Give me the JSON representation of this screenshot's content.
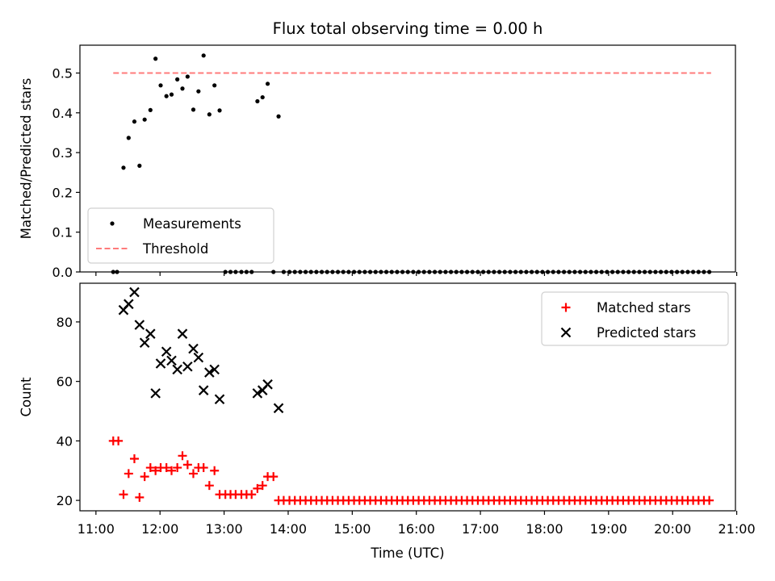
{
  "chart_data": [
    {
      "type": "scatter",
      "title": "Flux total observing time = 0.00 h",
      "xlabel": "",
      "ylabel": "Matched/Predicted stars",
      "xlim": [
        10.75,
        20.98
      ],
      "ylim": [
        0,
        0.57
      ],
      "yticks": [
        0,
        0.1,
        0.2,
        0.3,
        0.4,
        0.5
      ],
      "ytick_labels": [
        "0.0",
        "0.1",
        "0.2",
        "0.3",
        "0.4",
        "0.5"
      ],
      "xticks": [
        11,
        12,
        13,
        14,
        15,
        16,
        17,
        18,
        19,
        20,
        21
      ],
      "legend": {
        "placement": "lower-left",
        "entries": [
          "Measurements",
          "Threshold"
        ]
      },
      "series": [
        {
          "name": "Measurements",
          "marker": "dot",
          "color": "#000000",
          "x": [
            11.27,
            11.33,
            11.43,
            11.51,
            11.6,
            11.68,
            11.76,
            11.85,
            11.93,
            12.01,
            12.1,
            12.18,
            12.27,
            12.35,
            12.43,
            12.52,
            12.6,
            12.68,
            12.77,
            12.85,
            12.93,
            13.02,
            13.1,
            13.18,
            13.27,
            13.35,
            13.43,
            13.52,
            13.6,
            13.68,
            13.77,
            13.85,
            13.93
          ],
          "y": [
            0.0,
            0.0,
            0.262,
            0.337,
            0.378,
            0.267,
            0.383,
            0.407,
            0.536,
            0.469,
            0.442,
            0.446,
            0.484,
            0.461,
            0.491,
            0.408,
            0.454,
            0.544,
            0.396,
            0.469,
            0.406,
            0.0,
            0.0,
            0.0,
            0.0,
            0.0,
            0.0,
            0.429,
            0.439,
            0.473,
            0.0,
            0.391,
            0.0
          ],
          "zero_points": {
            "x_start": 14.02,
            "x_step": 0.084,
            "count": 79,
            "value": 0
          }
        },
        {
          "name": "Threshold",
          "style": "dashed",
          "color": "#ff7b7b",
          "x": [
            11.27,
            20.6
          ],
          "y": [
            0.5,
            0.5
          ]
        }
      ]
    },
    {
      "type": "scatter",
      "title": "",
      "xlabel": "Time (UTC)",
      "ylabel": "Count",
      "xlim": [
        10.75,
        20.98
      ],
      "ylim": [
        16.5,
        93
      ],
      "yticks": [
        20,
        40,
        60,
        80
      ],
      "ytick_labels": [
        "20",
        "40",
        "60",
        "80"
      ],
      "xticks": [
        11,
        12,
        13,
        14,
        15,
        16,
        17,
        18,
        19,
        20,
        21
      ],
      "xtick_labels": [
        "11:00",
        "12:00",
        "13:00",
        "14:00",
        "15:00",
        "16:00",
        "17:00",
        "18:00",
        "19:00",
        "20:00",
        "21:00"
      ],
      "legend": {
        "placement": "upper-right",
        "entries": [
          "Matched stars",
          "Predicted stars"
        ]
      },
      "series": [
        {
          "name": "Matched stars",
          "marker": "plus",
          "color": "#ff0000",
          "x": [
            11.27,
            11.35,
            11.43,
            11.51,
            11.6,
            11.68,
            11.76,
            11.85,
            11.93,
            12.01,
            12.1,
            12.18,
            12.27,
            12.35,
            12.43,
            12.52,
            12.6,
            12.68,
            12.77,
            12.85,
            12.93,
            13.02,
            13.1,
            13.18,
            13.27,
            13.35,
            13.43,
            13.52,
            13.6,
            13.68,
            13.77,
            13.85,
            13.93
          ],
          "y": [
            40,
            40,
            22,
            29,
            34,
            21,
            28,
            31,
            30,
            31,
            31,
            30,
            31,
            35,
            32,
            29,
            31,
            31,
            25,
            30,
            22,
            22,
            22,
            22,
            22,
            22,
            22,
            24,
            25,
            28,
            28,
            20,
            20
          ],
          "zero_points": {
            "x_start": 14.02,
            "x_step": 0.084,
            "count": 79,
            "value": 20
          }
        },
        {
          "name": "Predicted stars",
          "marker": "x",
          "color": "#000000",
          "x": [
            11.43,
            11.51,
            11.6,
            11.68,
            11.76,
            11.85,
            11.93,
            12.01,
            12.1,
            12.18,
            12.27,
            12.35,
            12.43,
            12.52,
            12.6,
            12.68,
            12.77,
            12.85,
            12.93,
            13.52,
            13.6,
            13.68,
            13.85
          ],
          "y": [
            84,
            86,
            90,
            79,
            73,
            76,
            56,
            66,
            70,
            67,
            64,
            76,
            65,
            71,
            68,
            57,
            63,
            64,
            54,
            56,
            57,
            59,
            51
          ]
        }
      ]
    }
  ]
}
